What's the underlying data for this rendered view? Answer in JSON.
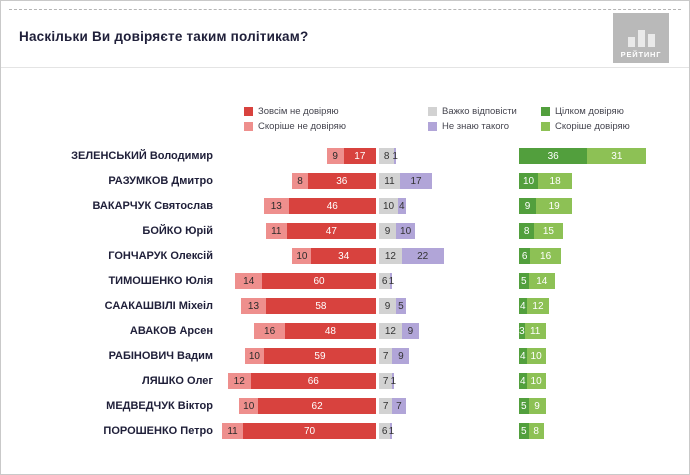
{
  "header": {
    "title": "Наскільки Ви довіряєте таким політикам?",
    "logo_text": "РЕЙТИНГ"
  },
  "chart_data": {
    "type": "bar",
    "orientation": "horizontal",
    "stacked": true,
    "diverging": true,
    "unit": "percent",
    "title": "Наскільки Ви довіряєте таким політикам?",
    "legend_position": "top",
    "categories": [
      "ЗЕЛЕНСЬКИЙ Володимир",
      "РАЗУМКОВ Дмитро",
      "ВАКАРЧУК Святослав",
      "БОЙКО Юрій",
      "ГОНЧАРУК Олексій",
      "ТИМОШЕНКО Юлія",
      "СААКАШВІЛІ Міхеіл",
      "АВАКОВ Арсен",
      "РАБІНОВИЧ Вадим",
      "ЛЯШКО Олег",
      "МЕДВЕДЧУК Віктор",
      "ПОРОШЕНКО Петро"
    ],
    "series": [
      {
        "key": "rather-distrust",
        "name": "Скоріше не довіряю",
        "color": "#ee8f8d",
        "text_color": "#2b2b2b",
        "values": [
          9,
          8,
          13,
          11,
          10,
          14,
          13,
          16,
          10,
          12,
          10,
          11
        ]
      },
      {
        "key": "completely-distrust",
        "name": "Зовсім не довіряю",
        "color": "#d8423e",
        "text_color": "#ffffff",
        "values": [
          17,
          36,
          46,
          47,
          34,
          60,
          58,
          48,
          59,
          66,
          62,
          70
        ]
      },
      {
        "key": "hard-to-answer",
        "name": "Важко відповісти",
        "color": "#d2d2d2",
        "text_color": "#333333",
        "values": [
          8,
          11,
          10,
          9,
          12,
          6,
          9,
          12,
          7,
          7,
          7,
          6
        ]
      },
      {
        "key": "dont-know-person",
        "name": "Не знаю такого",
        "color": "#b1a5d8",
        "text_color": "#333333",
        "values": [
          1,
          17,
          4,
          10,
          22,
          1,
          5,
          9,
          9,
          1,
          7,
          1
        ]
      },
      {
        "key": "fully-trust",
        "name": "Цілком довіряю",
        "color": "#529f3d",
        "text_color": "#ffffff",
        "values": [
          36,
          10,
          9,
          8,
          6,
          5,
          4,
          3,
          4,
          4,
          5,
          5
        ]
      },
      {
        "key": "rather-trust",
        "name": "Скоріше довіряю",
        "color": "#8dc155",
        "text_color": "#ffffff",
        "values": [
          31,
          18,
          19,
          15,
          16,
          14,
          12,
          11,
          10,
          10,
          9,
          8
        ]
      }
    ],
    "legend_columns": [
      [
        1,
        0
      ],
      [
        2,
        3
      ],
      [
        4,
        5
      ]
    ]
  }
}
